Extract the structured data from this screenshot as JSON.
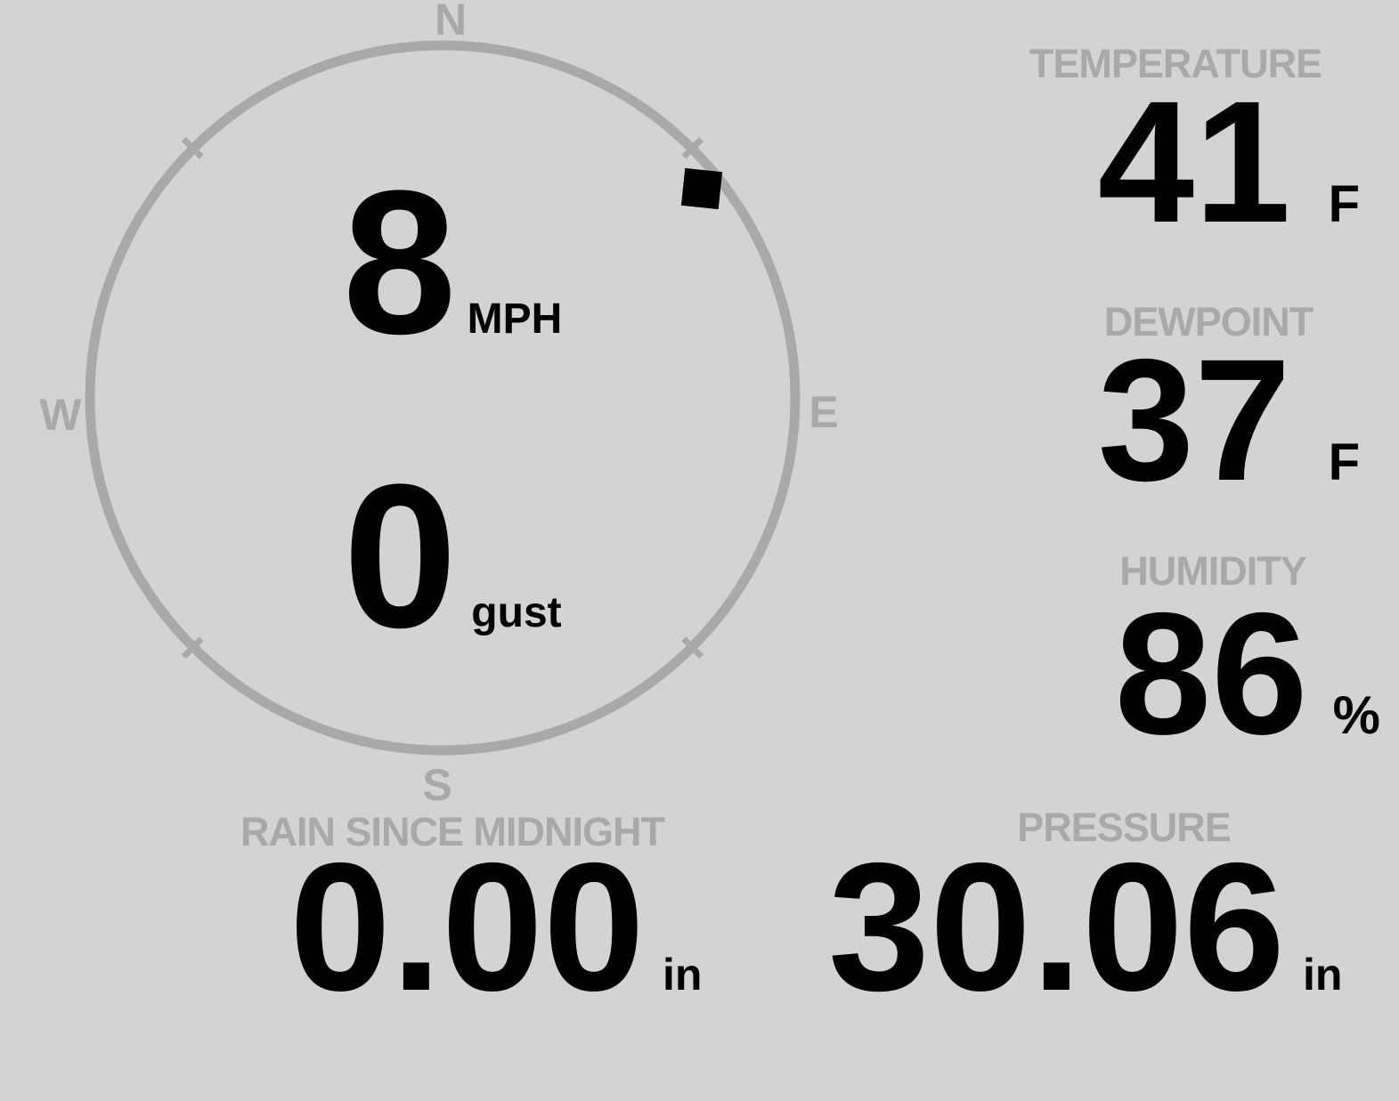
{
  "theme": {
    "background": "#d3d3d3",
    "value_color": "#000000",
    "muted_color": "#a9a9a9"
  },
  "wind": {
    "speed_value": "8",
    "speed_unit": "MPH",
    "gust_value": "0",
    "gust_unit": "gust",
    "direction_deg": 51,
    "marker_radius": 374,
    "compass": {
      "north": "N",
      "east": "E",
      "south": "S",
      "west": "W"
    }
  },
  "metrics": {
    "temperature": {
      "label": "TEMPERATURE",
      "value": "41",
      "unit": "F"
    },
    "dewpoint": {
      "label": "DEWPOINT",
      "value": "37",
      "unit": "F"
    },
    "humidity": {
      "label": "HUMIDITY",
      "value": "86",
      "unit": "%"
    },
    "rain": {
      "label": "RAIN SINCE MIDNIGHT",
      "value": "0.00",
      "unit": "in"
    },
    "pressure": {
      "label": "PRESSURE",
      "value": "30.06",
      "unit": "in"
    }
  }
}
